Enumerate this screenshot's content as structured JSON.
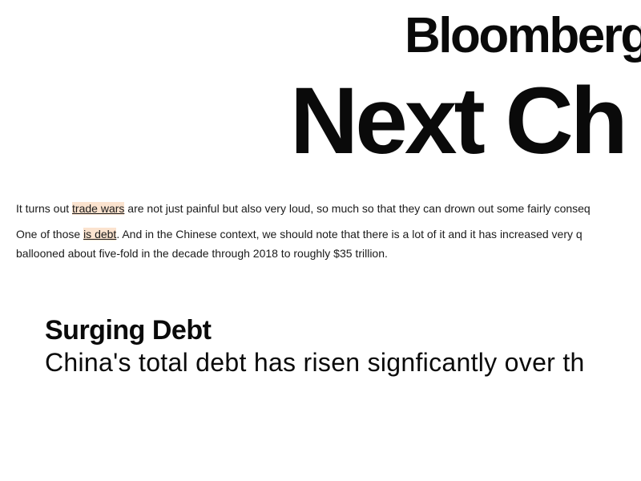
{
  "masthead": {
    "brand": "Bloomberg",
    "title": "Next Ch"
  },
  "article": {
    "p1": {
      "before": "It turns out ",
      "link": "trade wars",
      "after": " are not just painful but also very loud, so much so that they can drown out some fairly conseq"
    },
    "p2": {
      "before": "One of those ",
      "link": "is debt",
      "after": ". And in the Chinese context, we should note that there is a lot of it and it has increased very q",
      "line2": "ballooned about five-fold in the decade through 2018 to roughly $35 trillion."
    }
  },
  "chart": {
    "title": "Surging Debt",
    "subtitle": "China's total debt has risen signficantly over th"
  }
}
